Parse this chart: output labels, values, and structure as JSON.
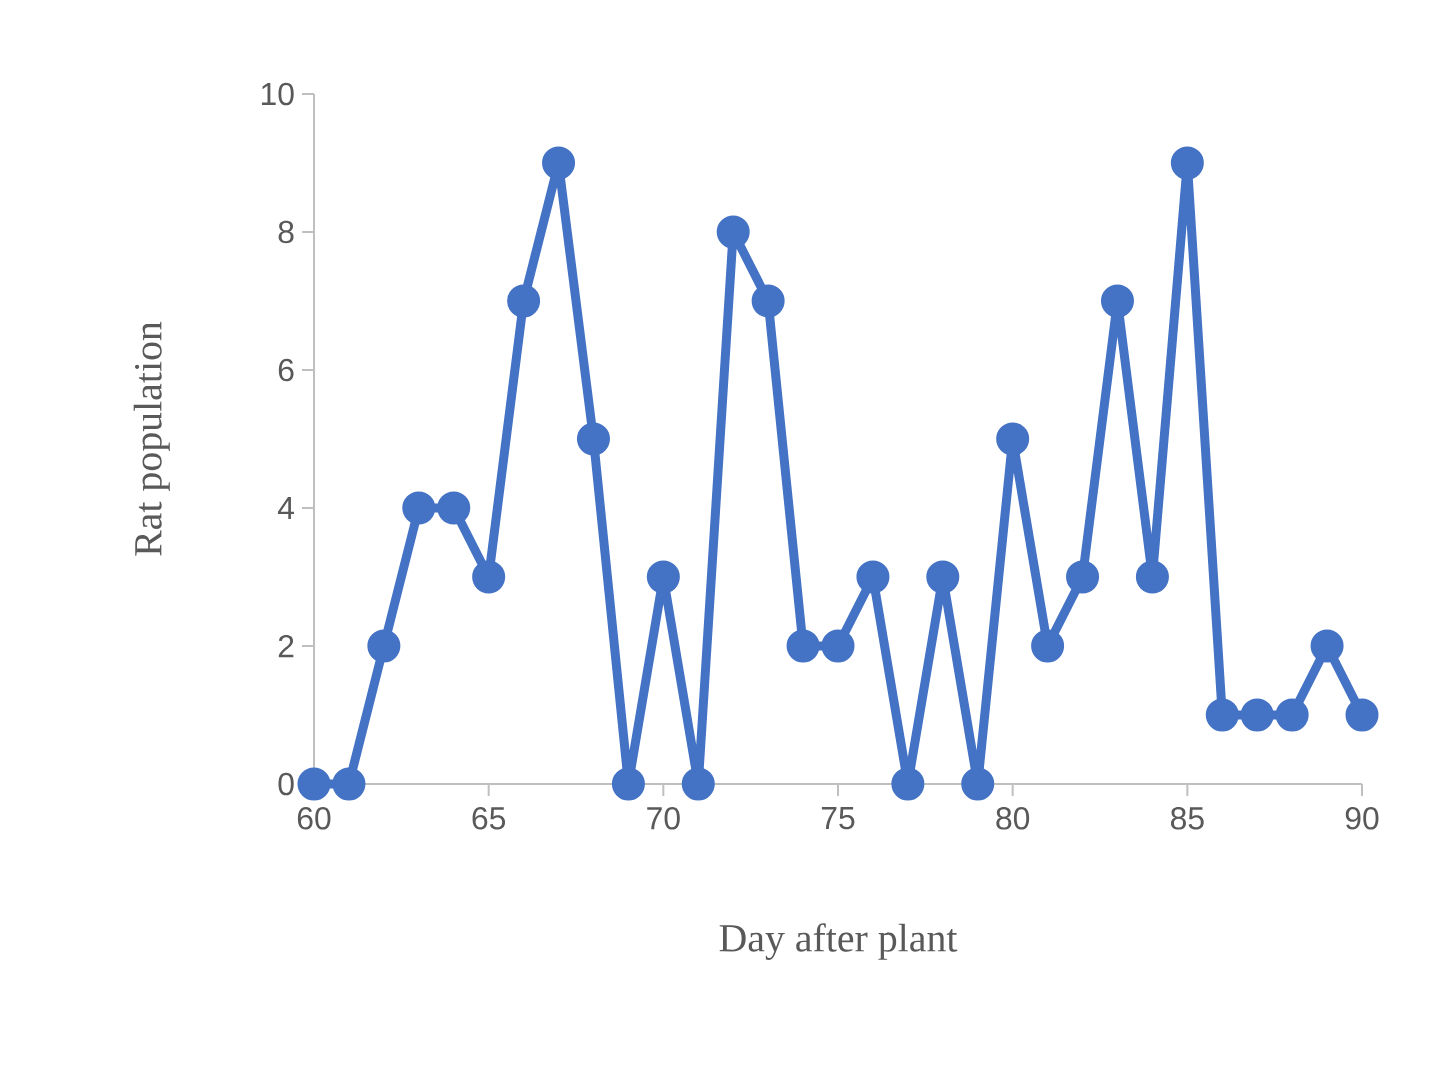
{
  "chart_data": {
    "type": "line",
    "xlabel": "Day after plant",
    "ylabel": "Rat population",
    "x": [
      60,
      61,
      62,
      63,
      64,
      65,
      66,
      67,
      68,
      69,
      70,
      71,
      72,
      73,
      74,
      75,
      76,
      77,
      78,
      79,
      80,
      81,
      82,
      83,
      84,
      85,
      86,
      87,
      88,
      89,
      90
    ],
    "series": [
      {
        "color": "#4472c4",
        "values": [
          0,
          0,
          2,
          4,
          4,
          3,
          7,
          9,
          5,
          0,
          3,
          0,
          8,
          7,
          2,
          2,
          3,
          0,
          3,
          0,
          5,
          2,
          3,
          7,
          3,
          9,
          1,
          1,
          1,
          2,
          1
        ]
      }
    ],
    "xlim": [
      60,
      90
    ],
    "xticks": [
      60,
      65,
      70,
      75,
      80,
      85,
      90
    ],
    "ylim": [
      0,
      10
    ],
    "yticks": [
      0,
      2,
      4,
      6,
      8,
      10
    ],
    "grid": false,
    "marker": "circle",
    "line_style": "solid"
  }
}
